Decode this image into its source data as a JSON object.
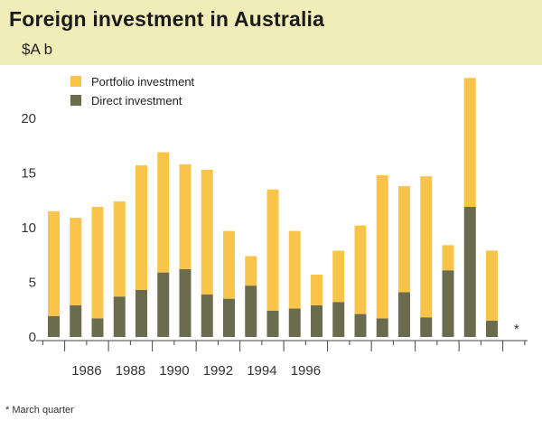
{
  "header": {
    "title": "Foreign investment in Australia",
    "unit": "$A b"
  },
  "footnote": "*  March quarter",
  "colors": {
    "portfolio": "#f8c44a",
    "direct": "#6b6b4e",
    "band": "#f0edb8"
  },
  "chart_data": {
    "type": "bar",
    "stacked": true,
    "title": "Foreign investment in Australia",
    "ylabel": "$A b",
    "ylim": [
      0,
      25
    ],
    "yticks": [
      0,
      5,
      10,
      15,
      20
    ],
    "xticks": [
      "1986",
      "1988",
      "1990",
      "1992",
      "1994",
      "1996"
    ],
    "periods": [
      "1985-H2",
      "1986-H1",
      "1986-H2",
      "1987-H1",
      "1987-H2",
      "1988-H1",
      "1988-H2",
      "1989-H1",
      "1989-H2",
      "1990-H1",
      "1990-H2",
      "1991-H1",
      "1991-H2",
      "1992-H1",
      "1992-H2",
      "1993-H1",
      "1993-H2",
      "1994-H1",
      "1994-H2",
      "1995-H1",
      "1995-H2",
      "1996-Q1"
    ],
    "series": [
      {
        "name": "Direct investment",
        "values": [
          1.9,
          2.9,
          1.7,
          3.7,
          4.3,
          5.9,
          6.2,
          3.9,
          3.5,
          4.7,
          2.4,
          2.6,
          2.9,
          3.2,
          2.1,
          1.7,
          4.1,
          1.8,
          6.1,
          11.9,
          1.5,
          null
        ]
      },
      {
        "name": "Portfolio investment",
        "values": [
          9.6,
          8.0,
          10.2,
          8.7,
          11.4,
          11.0,
          9.6,
          11.4,
          6.2,
          2.7,
          11.1,
          7.1,
          2.8,
          4.7,
          8.1,
          13.1,
          9.7,
          12.9,
          2.3,
          11.8,
          6.4,
          null
        ]
      }
    ],
    "annotations": [
      {
        "label": "*",
        "note": "March quarter"
      }
    ],
    "legend": [
      "Portfolio investment",
      "Direct investment"
    ],
    "legend_position": "top-left"
  }
}
